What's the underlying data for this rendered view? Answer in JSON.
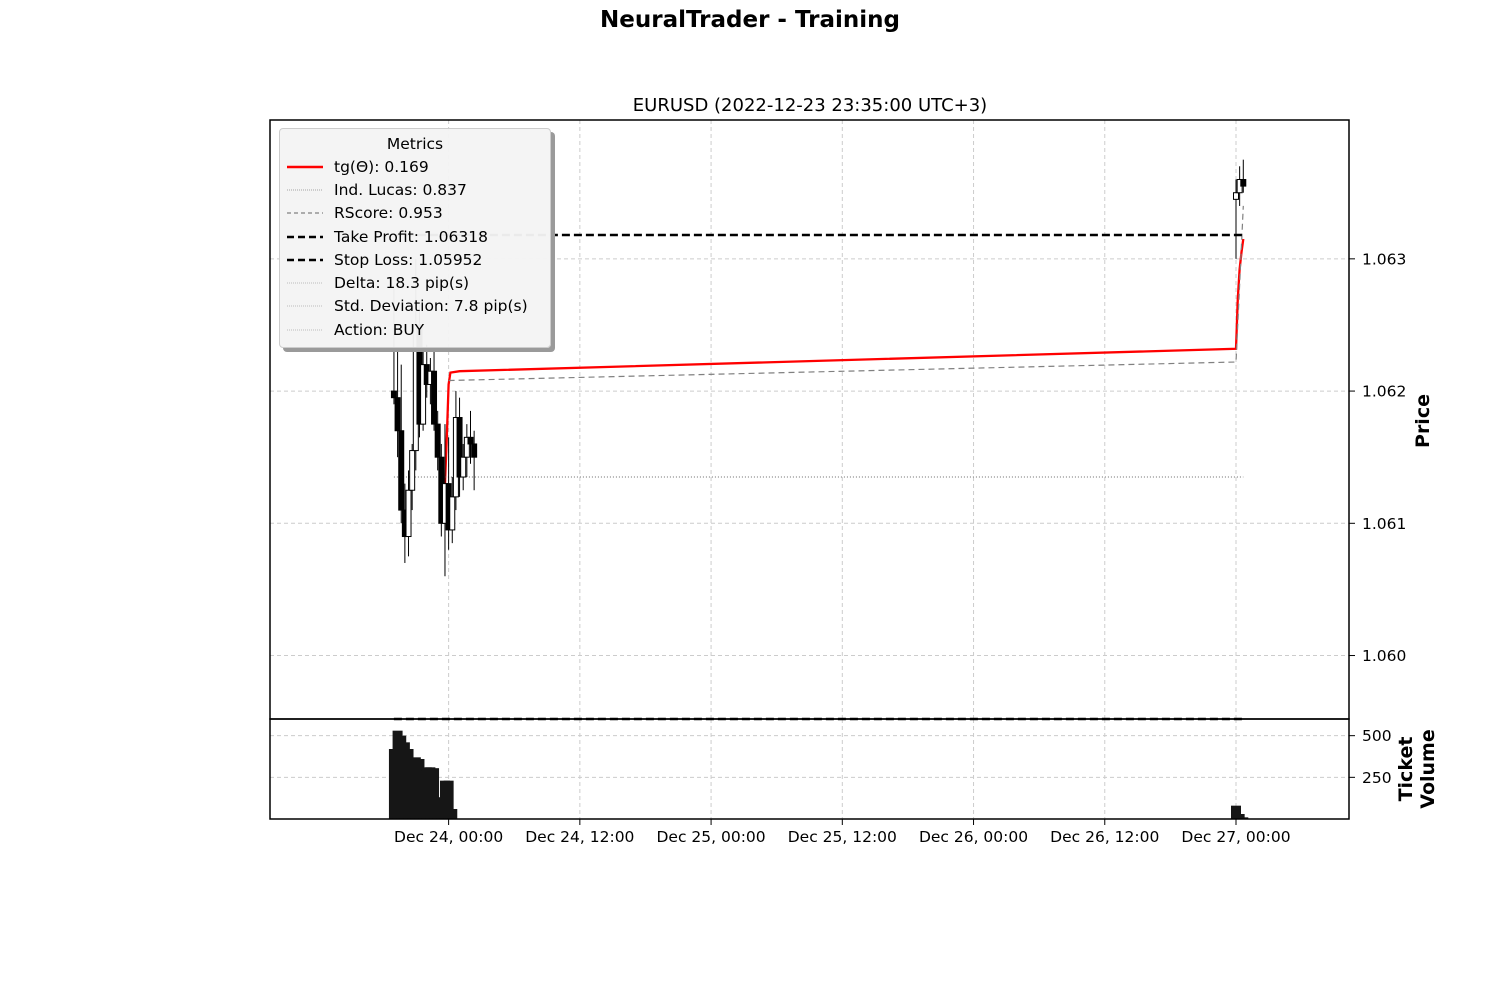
{
  "figure": {
    "suptitle": "NeuralTrader - Training"
  },
  "chart_data": {
    "type": "candlestick",
    "title": "EURUSD (2022-12-23 23:35:00 UTC+3)",
    "price_axis": {
      "ylabel": "Price",
      "ticks": [
        1.06,
        1.061,
        1.062,
        1.063
      ],
      "tick_labels": [
        "1.060",
        "1.061",
        "1.062",
        "1.063"
      ],
      "ylim": [
        1.05952,
        1.06405
      ],
      "grid": true
    },
    "volume_axis": {
      "ylabel": "Ticket Volume",
      "ticks": [
        250,
        500
      ],
      "tick_labels": [
        "250",
        "500"
      ],
      "ylim": [
        0,
        600
      ],
      "grid": true
    },
    "x_axis": {
      "start": "2022-12-23 07:40",
      "end": "2022-12-27 10:20",
      "ticks": [
        "2022-12-24 00:00",
        "2022-12-24 12:00",
        "2022-12-25 00:00",
        "2022-12-25 12:00",
        "2022-12-26 00:00",
        "2022-12-26 12:00",
        "2022-12-27 00:00"
      ],
      "tick_labels": [
        "Dec 24, 00:00",
        "Dec 24, 12:00",
        "Dec 25, 00:00",
        "Dec 25, 12:00",
        "Dec 26, 00:00",
        "Dec 26, 12:00",
        "Dec 27, 00:00"
      ]
    },
    "candles": [
      {
        "t": "2022-12-23 19:00",
        "o": 1.062,
        "h": 1.0628,
        "l": 1.0619,
        "c": 1.06195
      },
      {
        "t": "2022-12-23 19:20",
        "o": 1.06195,
        "h": 1.0623,
        "l": 1.0615,
        "c": 1.0617
      },
      {
        "t": "2022-12-23 19:40",
        "o": 1.0617,
        "h": 1.0622,
        "l": 1.061,
        "c": 1.0611
      },
      {
        "t": "2022-12-23 20:00",
        "o": 1.0611,
        "h": 1.0613,
        "l": 1.0607,
        "c": 1.0609
      },
      {
        "t": "2022-12-23 20:20",
        "o": 1.0609,
        "h": 1.0614,
        "l": 1.06075,
        "c": 1.06125
      },
      {
        "t": "2022-12-23 20:40",
        "o": 1.06125,
        "h": 1.0616,
        "l": 1.0611,
        "c": 1.06155
      },
      {
        "t": "2022-12-23 21:00",
        "o": 1.06155,
        "h": 1.063,
        "l": 1.0614,
        "c": 1.0625
      },
      {
        "t": "2022-12-23 21:20",
        "o": 1.0625,
        "h": 1.06265,
        "l": 1.06165,
        "c": 1.06175
      },
      {
        "t": "2022-12-23 21:40",
        "o": 1.06175,
        "h": 1.0623,
        "l": 1.0617,
        "c": 1.0622
      },
      {
        "t": "2022-12-23 22:00",
        "o": 1.0622,
        "h": 1.06235,
        "l": 1.06195,
        "c": 1.06205
      },
      {
        "t": "2022-12-23 22:20",
        "o": 1.06205,
        "h": 1.06225,
        "l": 1.0619,
        "c": 1.06215
      },
      {
        "t": "2022-12-23 22:40",
        "o": 1.06215,
        "h": 1.0623,
        "l": 1.0617,
        "c": 1.06175
      },
      {
        "t": "2022-12-23 23:00",
        "o": 1.06175,
        "h": 1.06185,
        "l": 1.0614,
        "c": 1.0615
      },
      {
        "t": "2022-12-23 23:20",
        "o": 1.0615,
        "h": 1.0616,
        "l": 1.0609,
        "c": 1.061
      },
      {
        "t": "2022-12-23 23:40",
        "o": 1.061,
        "h": 1.06175,
        "l": 1.0606,
        "c": 1.0613
      },
      {
        "t": "2022-12-24 00:00",
        "o": 1.0613,
        "h": 1.06165,
        "l": 1.0608,
        "c": 1.06095
      },
      {
        "t": "2022-12-24 00:20",
        "o": 1.06095,
        "h": 1.06135,
        "l": 1.06085,
        "c": 1.0612
      },
      {
        "t": "2022-12-24 00:40",
        "o": 1.0612,
        "h": 1.062,
        "l": 1.0611,
        "c": 1.0618
      },
      {
        "t": "2022-12-24 01:00",
        "o": 1.0618,
        "h": 1.06195,
        "l": 1.0612,
        "c": 1.06135
      },
      {
        "t": "2022-12-24 01:20",
        "o": 1.06135,
        "h": 1.0616,
        "l": 1.06125,
        "c": 1.0615
      },
      {
        "t": "2022-12-24 01:40",
        "o": 1.0615,
        "h": 1.06175,
        "l": 1.06135,
        "c": 1.06165
      },
      {
        "t": "2022-12-24 02:00",
        "o": 1.06165,
        "h": 1.06185,
        "l": 1.06145,
        "c": 1.0616
      },
      {
        "t": "2022-12-24 02:20",
        "o": 1.0616,
        "h": 1.0617,
        "l": 1.06125,
        "c": 1.0615
      },
      {
        "t": "2022-12-27 00:00",
        "o": 1.06345,
        "h": 1.0636,
        "l": 1.063,
        "c": 1.0635
      },
      {
        "t": "2022-12-27 00:20",
        "o": 1.0635,
        "h": 1.0637,
        "l": 1.0634,
        "c": 1.0636
      },
      {
        "t": "2022-12-27 00:40",
        "o": 1.0636,
        "h": 1.06375,
        "l": 1.0635,
        "c": 1.06355
      }
    ],
    "volume": [
      {
        "t": "2022-12-23 19:00",
        "v": 420
      },
      {
        "t": "2022-12-23 19:20",
        "v": 530
      },
      {
        "t": "2022-12-23 19:40",
        "v": 500
      },
      {
        "t": "2022-12-23 20:00",
        "v": 460
      },
      {
        "t": "2022-12-23 20:20",
        "v": 420
      },
      {
        "t": "2022-12-23 20:40",
        "v": 360
      },
      {
        "t": "2022-12-23 21:00",
        "v": 370
      },
      {
        "t": "2022-12-23 21:20",
        "v": 360
      },
      {
        "t": "2022-12-23 21:40",
        "v": 290
      },
      {
        "t": "2022-12-23 22:00",
        "v": 310
      },
      {
        "t": "2022-12-23 22:20",
        "v": 310
      },
      {
        "t": "2022-12-23 22:40",
        "v": 305
      },
      {
        "t": "2022-12-23 23:00",
        "v": 130
      },
      {
        "t": "2022-12-23 23:20",
        "v": 130
      },
      {
        "t": "2022-12-23 23:40",
        "v": 230
      },
      {
        "t": "2022-12-24 00:00",
        "v": 230
      },
      {
        "t": "2022-12-24 00:20",
        "v": 60
      },
      {
        "t": "2022-12-27 00:00",
        "v": 80
      },
      {
        "t": "2022-12-27 00:20",
        "v": 30
      },
      {
        "t": "2022-12-27 00:40",
        "v": 10
      }
    ],
    "series": [
      {
        "name": "tg(Θ): 0.169",
        "style": "solid",
        "color": "#ff0000",
        "points": [
          [
            "2022-12-23 23:40",
            1.0613
          ],
          [
            "2022-12-23 23:50",
            1.06165
          ],
          [
            "2022-12-24 00:00",
            1.06205
          ],
          [
            "2022-12-24 00:10",
            1.06214
          ],
          [
            "2022-12-24 01:00",
            1.06215
          ],
          [
            "2022-12-27 00:00",
            1.06232
          ],
          [
            "2022-12-27 00:10",
            1.0627
          ],
          [
            "2022-12-27 00:20",
            1.06292
          ],
          [
            "2022-12-27 00:30",
            1.06305
          ],
          [
            "2022-12-27 00:40",
            1.06315
          ]
        ]
      },
      {
        "name": "Ind. Lucas: 0.837",
        "style": "dotted",
        "color": "#888888",
        "points": [
          [
            "2022-12-23 19:00",
            1.06135
          ],
          [
            "2022-12-27 00:40",
            1.06135
          ]
        ]
      },
      {
        "name": "RScore: 0.953",
        "style": "dashed",
        "color": "#808080",
        "points": [
          [
            "2022-12-24 00:00",
            1.06208
          ],
          [
            "2022-12-27 00:00",
            1.06222
          ],
          [
            "2022-12-27 00:20",
            1.0628
          ],
          [
            "2022-12-27 00:40",
            1.0634
          ]
        ]
      },
      {
        "name": "Take Profit: 1.06318",
        "style": "dashed",
        "color": "#000000",
        "points": [
          [
            "2022-12-23 19:00",
            1.06318
          ],
          [
            "2022-12-27 00:40",
            1.06318
          ]
        ]
      },
      {
        "name": "Stop Loss: 1.05952",
        "style": "dashed",
        "color": "#000000",
        "points": [
          [
            "2022-12-23 19:00",
            1.05952
          ],
          [
            "2022-12-27 00:40",
            1.05952
          ]
        ]
      },
      {
        "name": "Delta: 18.3 pip(s)",
        "style": "none",
        "color": "#aaaaaa",
        "points": []
      },
      {
        "name": "Std. Deviation: 7.8 pip(s)",
        "style": "none",
        "color": "#aaaaaa",
        "points": []
      },
      {
        "name": "Action: BUY",
        "style": "none",
        "color": "#aaaaaa",
        "points": []
      }
    ],
    "legend": {
      "title": "Metrics",
      "position": "upper-left",
      "entries": [
        "tg(Θ): 0.169",
        "Ind. Lucas: 0.837",
        "RScore: 0.953",
        "Take Profit: 1.06318",
        "Stop Loss: 1.05952",
        "Delta: 18.3 pip(s)",
        "Std. Deviation: 7.8 pip(s)",
        "Action: BUY"
      ]
    }
  }
}
